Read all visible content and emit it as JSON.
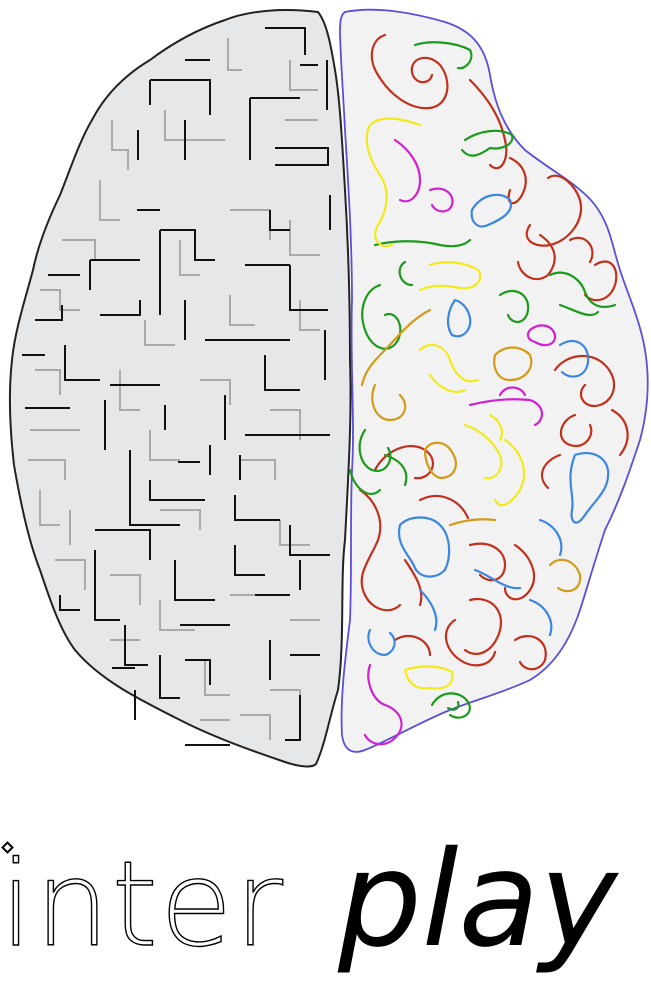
{
  "logo": {
    "word_part_1": "inter",
    "word_part_2": "play",
    "left_hemisphere": "maze",
    "right_hemisphere": "colorful-squiggles"
  },
  "colors": {
    "left_fill": "#e6e7e9",
    "left_stroke": "#222222",
    "maze_dark": "#111111",
    "maze_light": "#a9a9a9",
    "right_fill": "#f2f2f2",
    "right_stroke": "#5a4fd6",
    "squiggle_red": "#c0301c",
    "squiggle_green": "#1b9a1b",
    "squiggle_yellow": "#f2ea1a",
    "squiggle_magenta": "#d020d0",
    "squiggle_blue": "#3a86e0",
    "squiggle_orange": "#d39a18",
    "text": "#000000"
  }
}
